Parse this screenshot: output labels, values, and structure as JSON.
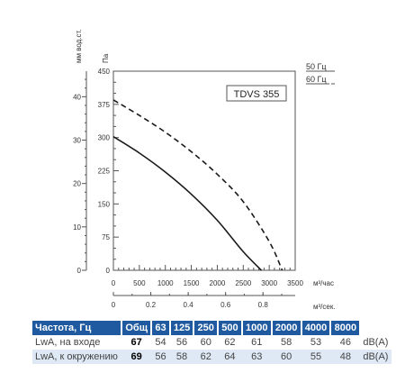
{
  "chart_data": {
    "type": "line",
    "title": "TDVS 355",
    "ylabel_left": "мм вод.ст.",
    "ylabel_pa": "Па",
    "xlabel_flow": "м³/час",
    "xlabel_flow2": "м³/сек.",
    "x_ticks": [
      0,
      500,
      1000,
      1500,
      2000,
      2500,
      3000,
      3500
    ],
    "x2_ticks": [
      "0",
      "0.2",
      "0.4",
      "0.6",
      "0.8",
      "1"
    ],
    "y_pa_ticks": [
      0,
      75,
      150,
      225,
      300,
      375,
      450
    ],
    "y_mm_ticks": [
      0,
      10,
      20,
      30,
      40
    ],
    "xlim": [
      0,
      3500
    ],
    "ylim": [
      0,
      450
    ],
    "legend": [
      "50 Гц",
      "60 Гц"
    ],
    "series": [
      {
        "name": "50 Гц",
        "style": "solid",
        "x": [
          0,
          500,
          1000,
          1500,
          2000,
          2500,
          2850
        ],
        "y": [
          302,
          265,
          222,
          172,
          113,
          42,
          0
        ]
      },
      {
        "name": "60 Гц",
        "style": "dashed",
        "x": [
          0,
          500,
          1000,
          1500,
          2000,
          2500,
          3000,
          3250
        ],
        "y": [
          385,
          350,
          312,
          268,
          217,
          155,
          65,
          0
        ]
      }
    ]
  },
  "table": {
    "headers": [
      "Частота, Гц",
      "Общ",
      "63",
      "125",
      "250",
      "500",
      "1000",
      "2000",
      "4000",
      "8000"
    ],
    "rows": [
      {
        "label": "LwA, на входе",
        "total": "67",
        "values": [
          "54",
          "56",
          "60",
          "62",
          "61",
          "58",
          "53",
          "46"
        ],
        "unit": "dB(A)"
      },
      {
        "label": "LwA, к окружению",
        "total": "69",
        "values": [
          "56",
          "58",
          "62",
          "64",
          "63",
          "60",
          "55",
          "48"
        ],
        "unit": "dB(A)"
      }
    ]
  }
}
